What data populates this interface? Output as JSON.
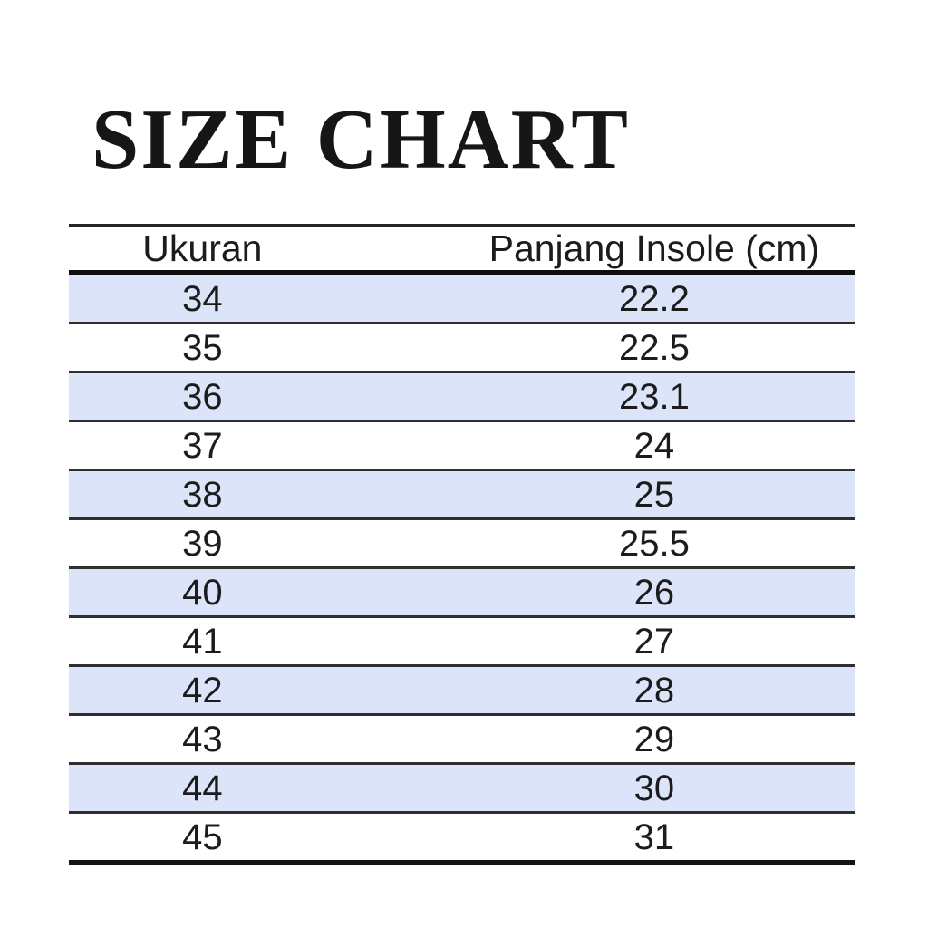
{
  "title": "SIZE CHART",
  "table": {
    "headers": {
      "size": "Ukuran",
      "insole": "Panjang Insole (cm)"
    },
    "rows": [
      {
        "size": "34",
        "insole": "22.2"
      },
      {
        "size": "35",
        "insole": "22.5"
      },
      {
        "size": "36",
        "insole": "23.1"
      },
      {
        "size": "37",
        "insole": "24"
      },
      {
        "size": "38",
        "insole": "25"
      },
      {
        "size": "39",
        "insole": "25.5"
      },
      {
        "size": "40",
        "insole": "26"
      },
      {
        "size": "41",
        "insole": "27"
      },
      {
        "size": "42",
        "insole": "28"
      },
      {
        "size": "43",
        "insole": "29"
      },
      {
        "size": "44",
        "insole": "30"
      },
      {
        "size": "45",
        "insole": "31"
      }
    ]
  },
  "colors": {
    "row_highlight": "#dbe4f8",
    "text": "#1c1c1c",
    "rule_thin": "#2f2f2f",
    "rule_thick": "#0e0e0e",
    "background": "#ffffff"
  },
  "chart_data": {
    "type": "table",
    "title": "SIZE CHART",
    "columns": [
      "Ukuran",
      "Panjang Insole (cm)"
    ],
    "rows": [
      [
        34,
        22.2
      ],
      [
        35,
        22.5
      ],
      [
        36,
        23.1
      ],
      [
        37,
        24
      ],
      [
        38,
        25
      ],
      [
        39,
        25.5
      ],
      [
        40,
        26
      ],
      [
        41,
        27
      ],
      [
        42,
        28
      ],
      [
        43,
        29
      ],
      [
        44,
        30
      ],
      [
        45,
        31
      ]
    ]
  }
}
